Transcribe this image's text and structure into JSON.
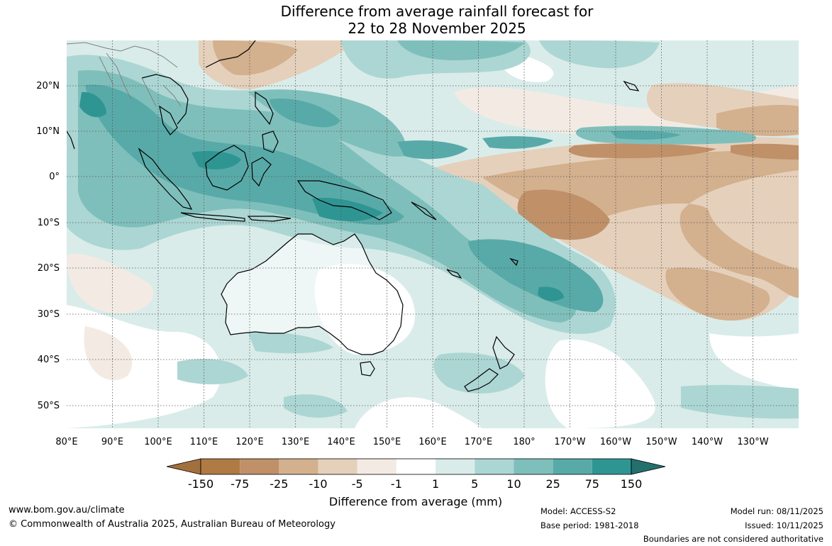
{
  "title_line1": "Difference from average rainfall forecast for",
  "title_line2": "22 to 28 November 2025",
  "map": {
    "longitude_ticks": [
      "80°E",
      "90°E",
      "100°E",
      "110°E",
      "120°E",
      "130°E",
      "140°E",
      "150°E",
      "160°E",
      "170°E",
      "180°",
      "170°W",
      "160°W",
      "150°W",
      "140°W",
      "130°W"
    ],
    "latitude_ticks": [
      "20°N",
      "10°N",
      "0°",
      "10°S",
      "20°S",
      "30°S",
      "40°S",
      "50°S"
    ],
    "extent": {
      "lon_min": 80,
      "lon_max": 240,
      "lat_min": -55,
      "lat_max": 30
    }
  },
  "legend": {
    "title": "Difference from average (mm)",
    "tick_labels": [
      "-150",
      "-75",
      "-25",
      "-10",
      "-5",
      "-1",
      "1",
      "5",
      "10",
      "25",
      "75",
      "150"
    ],
    "colors": [
      "#a2703c",
      "#b07a45",
      "#c09068",
      "#d3b08e",
      "#e5d0bb",
      "#f3ebe3",
      "#ffffff",
      "#d9ecea",
      "#acd6d3",
      "#7fbfbb",
      "#58aaa8",
      "#2f9592",
      "#24706f"
    ]
  },
  "footer": {
    "website": "www.bom.gov.au/climate",
    "copyright": "© Commonwealth of Australia 2025, Australian Bureau of Meteorology",
    "model": "Model: ACCESS-S2",
    "base_period": "Base period: 1981-2018",
    "model_run": "Model run: 08/11/2025",
    "issued": "Issued: 10/11/2025",
    "disclaimer": "Boundaries are not considered authoritative"
  }
}
